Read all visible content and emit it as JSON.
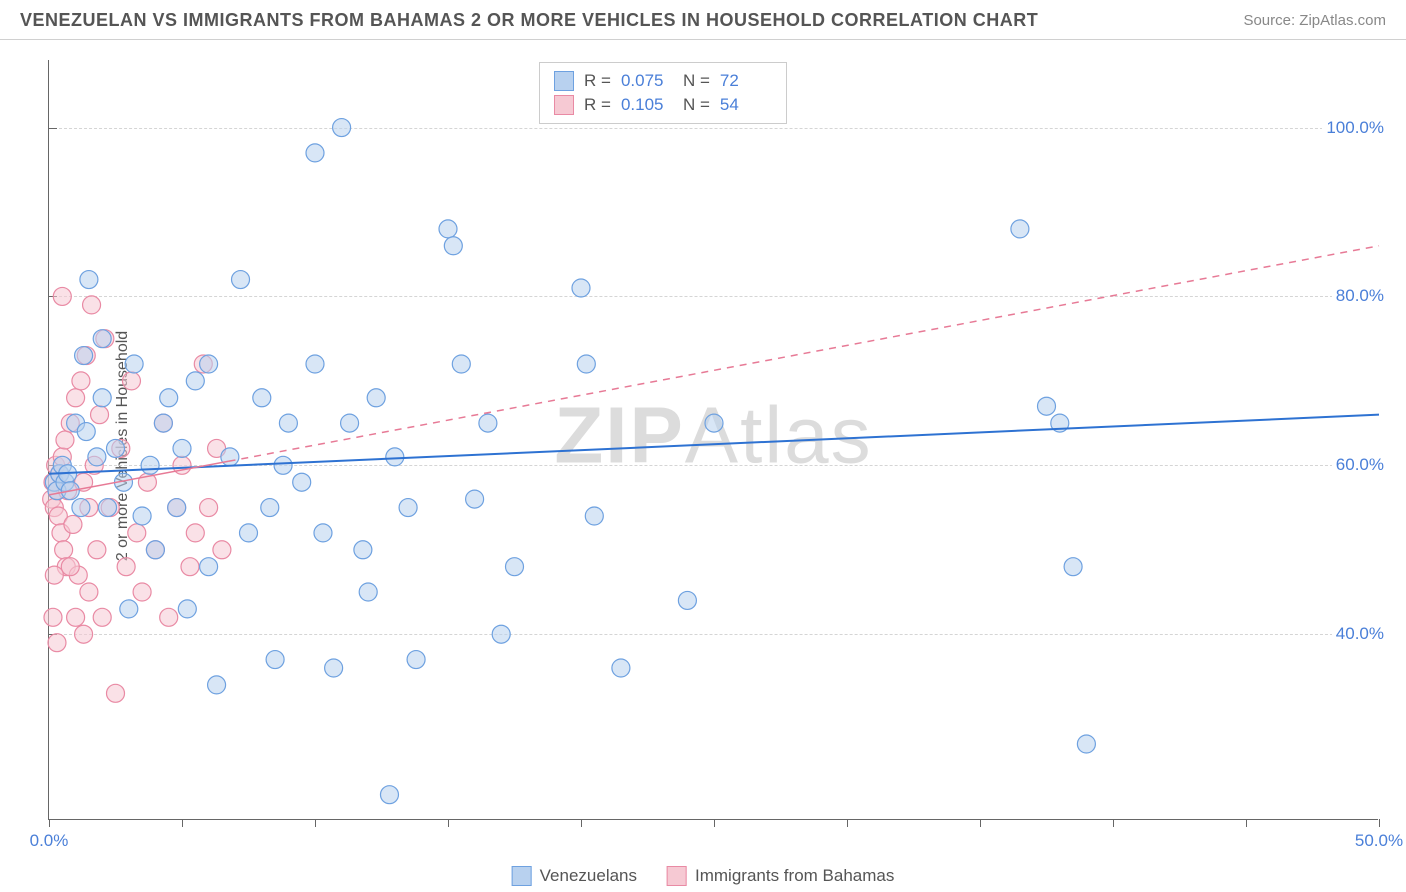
{
  "title": "VENEZUELAN VS IMMIGRANTS FROM BAHAMAS 2 OR MORE VEHICLES IN HOUSEHOLD CORRELATION CHART",
  "source_label": "Source: ZipAtlas.com",
  "y_axis_label": "2 or more Vehicles in Household",
  "watermark_a": "ZIP",
  "watermark_b": "Atlas",
  "chart": {
    "type": "scatter",
    "background_color": "#ffffff",
    "grid_color": "#d5d5d5",
    "axis_color": "#666666",
    "xlim": [
      0,
      50
    ],
    "ylim": [
      18,
      108
    ],
    "yticks": [
      40,
      60,
      80,
      100
    ],
    "ytick_labels": [
      "40.0%",
      "60.0%",
      "80.0%",
      "100.0%"
    ],
    "xtick_positions": [
      0,
      5,
      10,
      15,
      20,
      25,
      30,
      35,
      40,
      45,
      50
    ],
    "xtick_labels": {
      "0": "0.0%",
      "50": "50.0%"
    },
    "marker_radius": 9,
    "marker_opacity": 0.55,
    "marker_stroke_width": 1.2,
    "series": [
      {
        "name": "Venezuelans",
        "fill": "#b8d1ef",
        "stroke": "#6ea1e0",
        "trend": {
          "style": "solid",
          "color": "#2e72d2",
          "width": 2,
          "y0": 59,
          "y1": 66,
          "x1_frac": 1.0
        },
        "R": "0.075",
        "N": "72",
        "points": [
          [
            0.2,
            58
          ],
          [
            0.3,
            57
          ],
          [
            0.4,
            59
          ],
          [
            0.5,
            60
          ],
          [
            0.6,
            58
          ],
          [
            0.7,
            59
          ],
          [
            0.8,
            57
          ],
          [
            1.0,
            65
          ],
          [
            1.2,
            55
          ],
          [
            1.4,
            64
          ],
          [
            1.5,
            82
          ],
          [
            1.8,
            61
          ],
          [
            2.0,
            68
          ],
          [
            2.2,
            55
          ],
          [
            2.5,
            62
          ],
          [
            2.8,
            58
          ],
          [
            3.0,
            43
          ],
          [
            3.2,
            72
          ],
          [
            3.5,
            54
          ],
          [
            3.8,
            60
          ],
          [
            4.0,
            50
          ],
          [
            4.3,
            65
          ],
          [
            4.5,
            68
          ],
          [
            4.8,
            55
          ],
          [
            5.0,
            62
          ],
          [
            5.5,
            70
          ],
          [
            6.0,
            72
          ],
          [
            6.3,
            34
          ],
          [
            6.8,
            61
          ],
          [
            7.2,
            82
          ],
          [
            7.5,
            52
          ],
          [
            8.0,
            68
          ],
          [
            8.3,
            55
          ],
          [
            8.5,
            37
          ],
          [
            9.0,
            65
          ],
          [
            9.5,
            58
          ],
          [
            10.0,
            72
          ],
          [
            10.3,
            52
          ],
          [
            10.7,
            36
          ],
          [
            11.0,
            100
          ],
          [
            11.3,
            65
          ],
          [
            11.8,
            50
          ],
          [
            12.0,
            45
          ],
          [
            12.3,
            68
          ],
          [
            12.8,
            21
          ],
          [
            13.0,
            61
          ],
          [
            13.5,
            55
          ],
          [
            13.8,
            37
          ],
          [
            15.0,
            88
          ],
          [
            15.2,
            86
          ],
          [
            15.5,
            72
          ],
          [
            16.0,
            56
          ],
          [
            16.5,
            65
          ],
          [
            17.0,
            40
          ],
          [
            17.5,
            48
          ],
          [
            20.0,
            81
          ],
          [
            20.2,
            72
          ],
          [
            20.5,
            54
          ],
          [
            21.5,
            36
          ],
          [
            24.0,
            44
          ],
          [
            25.0,
            65
          ],
          [
            36.5,
            88
          ],
          [
            37.5,
            67
          ],
          [
            38.0,
            65
          ],
          [
            38.5,
            48
          ],
          [
            39.0,
            27
          ],
          [
            10.0,
            97
          ],
          [
            5.2,
            43
          ],
          [
            6.0,
            48
          ],
          [
            8.8,
            60
          ],
          [
            2.0,
            75
          ],
          [
            1.3,
            73
          ]
        ]
      },
      {
        "name": "Immigrants from Bahamas",
        "fill": "#f6c9d3",
        "stroke": "#e98aa4",
        "trend": {
          "style": "dashed",
          "color": "#e77a96",
          "width": 1.5,
          "y0": 56.5,
          "y1": 86,
          "x1_frac": 1.0,
          "solid_until_frac": 0.135
        },
        "R": "0.105",
        "N": "54",
        "points": [
          [
            0.1,
            56
          ],
          [
            0.15,
            58
          ],
          [
            0.2,
            55
          ],
          [
            0.25,
            60
          ],
          [
            0.3,
            57
          ],
          [
            0.35,
            54
          ],
          [
            0.4,
            59
          ],
          [
            0.45,
            52
          ],
          [
            0.5,
            61
          ],
          [
            0.55,
            50
          ],
          [
            0.6,
            63
          ],
          [
            0.65,
            48
          ],
          [
            0.7,
            57
          ],
          [
            0.8,
            65
          ],
          [
            0.9,
            53
          ],
          [
            1.0,
            68
          ],
          [
            1.1,
            47
          ],
          [
            1.2,
            70
          ],
          [
            1.3,
            58
          ],
          [
            1.4,
            73
          ],
          [
            1.5,
            45
          ],
          [
            1.6,
            79
          ],
          [
            1.7,
            60
          ],
          [
            1.8,
            50
          ],
          [
            1.9,
            66
          ],
          [
            2.0,
            42
          ],
          [
            2.1,
            75
          ],
          [
            2.3,
            55
          ],
          [
            2.5,
            33
          ],
          [
            2.7,
            62
          ],
          [
            2.9,
            48
          ],
          [
            3.1,
            70
          ],
          [
            3.3,
            52
          ],
          [
            3.5,
            45
          ],
          [
            3.7,
            58
          ],
          [
            4.0,
            50
          ],
          [
            4.3,
            65
          ],
          [
            4.5,
            42
          ],
          [
            4.8,
            55
          ],
          [
            5.0,
            60
          ],
          [
            5.3,
            48
          ],
          [
            5.5,
            52
          ],
          [
            5.8,
            72
          ],
          [
            6.0,
            55
          ],
          [
            6.3,
            62
          ],
          [
            6.5,
            50
          ],
          [
            0.3,
            39
          ],
          [
            0.5,
            80
          ],
          [
            1.0,
            42
          ],
          [
            1.3,
            40
          ],
          [
            0.15,
            42
          ],
          [
            0.8,
            48
          ],
          [
            1.5,
            55
          ],
          [
            0.2,
            47
          ]
        ]
      }
    ]
  },
  "legend_top": {
    "rows": [
      {
        "swatch_fill": "#b8d1ef",
        "swatch_stroke": "#6ea1e0",
        "R_label": "R =",
        "R_val": "0.075",
        "N_label": "N =",
        "N_val": "72"
      },
      {
        "swatch_fill": "#f6c9d3",
        "swatch_stroke": "#e98aa4",
        "R_label": "R =",
        "R_val": "0.105",
        "N_label": "N =",
        "N_val": "54"
      }
    ]
  },
  "bottom_legend": [
    {
      "swatch_fill": "#b8d1ef",
      "swatch_stroke": "#6ea1e0",
      "label": "Venezuelans"
    },
    {
      "swatch_fill": "#f6c9d3",
      "swatch_stroke": "#e98aa4",
      "label": "Immigrants from Bahamas"
    }
  ]
}
